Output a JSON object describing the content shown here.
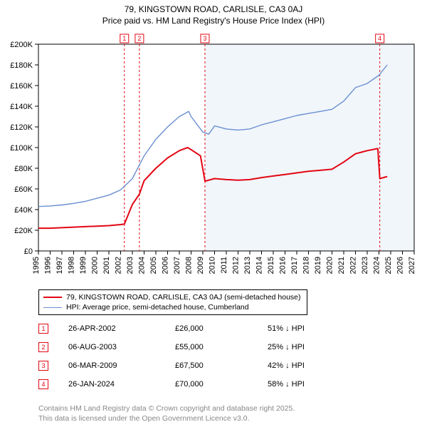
{
  "title_line1": "79, KINGSTOWN ROAD, CARLISLE, CA3 0AJ",
  "title_line2": "Price paid vs. HM Land Registry's House Price Index (HPI)",
  "chart": {
    "type": "line",
    "plot_bg": "#ffffff",
    "shaded_bg": "#f1f6fb",
    "shaded_from_year": 2009.18,
    "grid": false,
    "axis_color": "#000000",
    "tick_fontsize": 11,
    "xlim": [
      1995,
      2027
    ],
    "ylim": [
      0,
      200000
    ],
    "yticks": [
      0,
      20000,
      40000,
      60000,
      80000,
      100000,
      120000,
      140000,
      160000,
      180000,
      200000
    ],
    "ytick_labels": [
      "£0",
      "£20K",
      "£40K",
      "£60K",
      "£80K",
      "£100K",
      "£120K",
      "£140K",
      "£160K",
      "£180K",
      "£200K"
    ],
    "xticks": [
      1995,
      1996,
      1997,
      1998,
      1999,
      2000,
      2001,
      2002,
      2003,
      2004,
      2005,
      2006,
      2007,
      2008,
      2009,
      2010,
      2011,
      2012,
      2013,
      2014,
      2015,
      2016,
      2017,
      2018,
      2019,
      2020,
      2021,
      2022,
      2023,
      2024,
      2025,
      2026,
      2027
    ],
    "markers": [
      {
        "n": "1",
        "year": 2002.32,
        "color": "#e30613"
      },
      {
        "n": "2",
        "year": 2003.6,
        "color": "#e30613"
      },
      {
        "n": "3",
        "year": 2009.18,
        "color": "#e30613"
      },
      {
        "n": "4",
        "year": 2024.07,
        "color": "#e30613"
      }
    ],
    "marker_line_color": "#e30613",
    "marker_line_dash": "3,3",
    "marker_box_border": "#e30613",
    "marker_box_bg": "#ffffff",
    "series": [
      {
        "name": "price_paid",
        "color": "#e30613",
        "width": 2,
        "data": [
          [
            1995,
            22000
          ],
          [
            1996,
            22000
          ],
          [
            1997,
            22500
          ],
          [
            1998,
            23000
          ],
          [
            1999,
            23500
          ],
          [
            2000,
            24000
          ],
          [
            2001,
            24500
          ],
          [
            2002,
            25500
          ],
          [
            2002.32,
            26000
          ],
          [
            2003,
            45000
          ],
          [
            2003.6,
            55000
          ],
          [
            2004,
            68000
          ],
          [
            2005,
            80000
          ],
          [
            2006,
            90000
          ],
          [
            2007,
            97000
          ],
          [
            2007.7,
            100000
          ],
          [
            2008,
            98000
          ],
          [
            2008.8,
            92000
          ],
          [
            2009.18,
            67500
          ],
          [
            2009.19,
            67500
          ],
          [
            2010,
            70000
          ],
          [
            2011,
            69000
          ],
          [
            2012,
            68500
          ],
          [
            2013,
            69000
          ],
          [
            2014,
            71000
          ],
          [
            2015,
            72500
          ],
          [
            2016,
            74000
          ],
          [
            2017,
            75500
          ],
          [
            2018,
            77000
          ],
          [
            2019,
            78000
          ],
          [
            2020,
            79000
          ],
          [
            2021,
            86000
          ],
          [
            2022,
            94000
          ],
          [
            2023,
            97000
          ],
          [
            2023.9,
            99000
          ],
          [
            2024.07,
            70000
          ],
          [
            2024.08,
            70000
          ],
          [
            2024.7,
            72000
          ]
        ]
      },
      {
        "name": "hpi",
        "color": "#6a8fd0",
        "width": 1.4,
        "data": [
          [
            1995,
            43000
          ],
          [
            1996,
            43500
          ],
          [
            1997,
            44500
          ],
          [
            1998,
            46000
          ],
          [
            1999,
            48000
          ],
          [
            2000,
            51000
          ],
          [
            2001,
            54000
          ],
          [
            2002,
            59000
          ],
          [
            2003,
            70000
          ],
          [
            2004,
            92000
          ],
          [
            2005,
            108000
          ],
          [
            2006,
            120000
          ],
          [
            2007,
            130000
          ],
          [
            2007.8,
            135000
          ],
          [
            2008,
            130000
          ],
          [
            2009,
            115000
          ],
          [
            2009.5,
            113000
          ],
          [
            2010,
            121000
          ],
          [
            2011,
            118000
          ],
          [
            2012,
            117000
          ],
          [
            2013,
            118000
          ],
          [
            2014,
            122000
          ],
          [
            2015,
            125000
          ],
          [
            2016,
            128000
          ],
          [
            2017,
            131000
          ],
          [
            2018,
            133000
          ],
          [
            2019,
            135000
          ],
          [
            2020,
            137000
          ],
          [
            2021,
            145000
          ],
          [
            2022,
            158000
          ],
          [
            2023,
            162000
          ],
          [
            2024,
            170000
          ],
          [
            2024.7,
            180000
          ]
        ]
      }
    ]
  },
  "legend": {
    "items": [
      {
        "color": "#e30613",
        "width": 2,
        "label": "79, KINGSTOWN ROAD, CARLISLE, CA3 0AJ (semi-detached house)"
      },
      {
        "color": "#6a8fd0",
        "width": 1.4,
        "label": "HPI: Average price, semi-detached house, Cumberland"
      }
    ]
  },
  "transactions": [
    {
      "n": "1",
      "date": "26-APR-2002",
      "price": "£26,000",
      "pct": "51% ↓ HPI"
    },
    {
      "n": "2",
      "date": "06-AUG-2003",
      "price": "£55,000",
      "pct": "25% ↓ HPI"
    },
    {
      "n": "3",
      "date": "06-MAR-2009",
      "price": "£67,500",
      "pct": "42% ↓ HPI"
    },
    {
      "n": "4",
      "date": "26-JAN-2024",
      "price": "£70,000",
      "pct": "58% ↓ HPI"
    }
  ],
  "transaction_marker_color": "#e30613",
  "credit_line1": "Contains HM Land Registry data © Crown copyright and database right 2025.",
  "credit_line2": "This data is licensed under the Open Government Licence v3.0.",
  "credit_color": "#888888"
}
